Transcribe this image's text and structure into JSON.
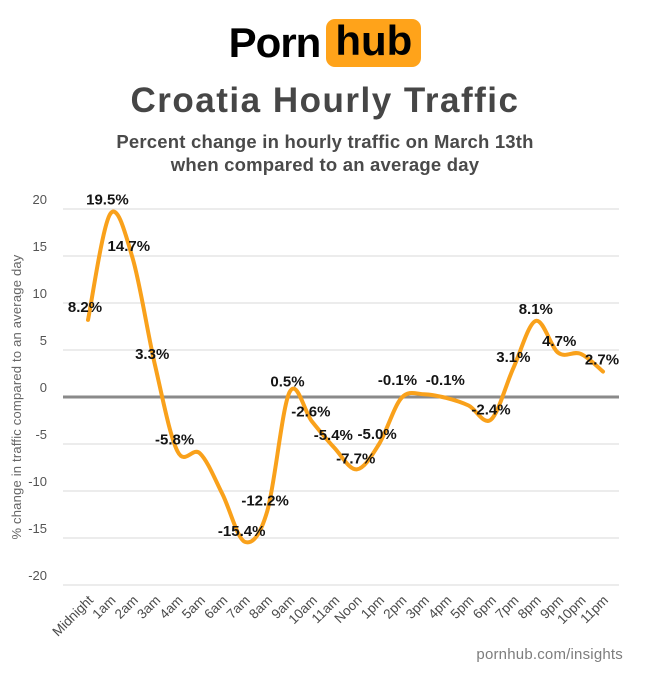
{
  "logo": {
    "part1": "Porn",
    "part2": "hub",
    "badge_color": "#ffa31a"
  },
  "title": "Croatia Hourly Traffic",
  "subtitle_line1": "Percent change in hourly traffic on March 13th",
  "subtitle_line2": "when compared to an average day",
  "footer": "pornhub.com/insights",
  "chart_data": {
    "type": "line",
    "title": "Croatia Hourly Traffic",
    "xlabel": "",
    "ylabel": "% change in traffic compared to an average day",
    "ylim": [
      -20,
      20
    ],
    "yticks": [
      20,
      15,
      10,
      5,
      0,
      -5,
      -10,
      -15,
      -20
    ],
    "grid": true,
    "legend": "none",
    "line_color": "#f9a11b",
    "grid_color": "#d8d8d8",
    "zero_line_color": "#8a8a8a",
    "label_color": "#141414",
    "tick_color": "#4a4a4a",
    "categories": [
      "Midnight",
      "1am",
      "2am",
      "3am",
      "4am",
      "5am",
      "6am",
      "7am",
      "8am",
      "9am",
      "10am",
      "11am",
      "Noon",
      "1pm",
      "2pm",
      "3pm",
      "4pm",
      "5pm",
      "6pm",
      "7pm",
      "8pm",
      "9pm",
      "10pm",
      "11pm"
    ],
    "series": [
      {
        "name": "March 13th percent change vs average day",
        "values": [
          8.2,
          19.5,
          14.7,
          3.3,
          -5.8,
          -6.0,
          -10.3,
          -15.4,
          -12.2,
          0.5,
          -2.6,
          -5.4,
          -7.7,
          -5.0,
          -0.1,
          0.3,
          -0.1,
          -0.9,
          -2.4,
          3.1,
          8.1,
          4.7,
          4.6,
          2.7
        ]
      }
    ],
    "point_labels": [
      "8.2%",
      "19.5%",
      "14.7%",
      "3.3%",
      "-5.8%",
      null,
      null,
      "-15.4%",
      "-12.2%",
      "0.5%",
      "-2.6%",
      "-5.4%",
      "-7.7%",
      "-5.0%",
      "-0.1%",
      null,
      "-0.1%",
      null,
      "-2.4%",
      "3.1%",
      "8.1%",
      "4.7%",
      null,
      "2.7%"
    ],
    "label_offsets": {
      "0": [
        -3,
        -13
      ],
      "1": [
        -3,
        -14
      ],
      "2": [
        -4,
        -13
      ],
      "3": [
        -3,
        -12
      ],
      "4": [
        -3,
        -12
      ],
      "7": [
        -3,
        -11
      ],
      "8": [
        -2,
        -11
      ],
      "9": [
        -2,
        -11
      ],
      "10": [
        -1,
        -10
      ],
      "11": [
        -1,
        -13
      ],
      "12": [
        -1,
        -11
      ],
      "13": [
        -2,
        -10
      ],
      "14": [
        -4,
        -18
      ],
      "16": [
        -1,
        -18
      ],
      "18": [
        0,
        -10
      ],
      "19": [
        0,
        -11
      ],
      "20": [
        0,
        -12
      ],
      "21": [
        1,
        -12
      ],
      "23": [
        -1,
        -12
      ]
    }
  }
}
